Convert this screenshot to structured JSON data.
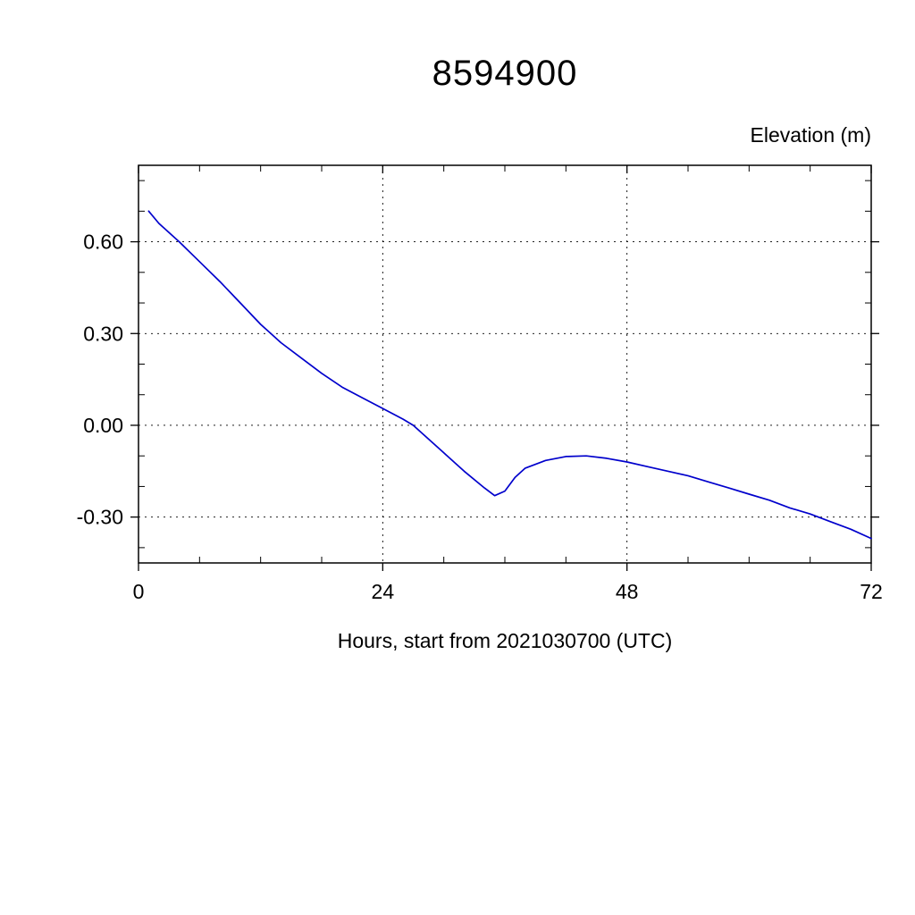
{
  "page": {
    "title": "8594900",
    "y_axis_title": "Elevation (m)",
    "x_axis_title": "Hours, start from 2021030700 (UTC)"
  },
  "chart_data": {
    "type": "line",
    "title": "8594900",
    "xlabel": "Hours, start from 2021030700 (UTC)",
    "ylabel": "Elevation (m)",
    "xlim": [
      0,
      72
    ],
    "ylim": [
      -0.45,
      0.85
    ],
    "grid": "dashed",
    "legend": "none",
    "line_color": "#0000cc",
    "x_major": [
      {
        "value": 0,
        "label": "0"
      },
      {
        "value": 24,
        "label": "24"
      },
      {
        "value": 48,
        "label": "48"
      },
      {
        "value": 72,
        "label": "72"
      }
    ],
    "x_minor_step": 6,
    "y_major": [
      {
        "value": 0.6,
        "label": "0.60"
      },
      {
        "value": 0.3,
        "label": "0.30"
      },
      {
        "value": 0.0,
        "label": "0.00"
      },
      {
        "value": -0.3,
        "label": "-0.30"
      }
    ],
    "y_minor_step": 0.1,
    "series": [
      {
        "name": "elevation",
        "x": [
          1,
          2,
          4,
          6,
          8,
          10,
          12,
          13,
          14,
          16,
          18,
          20,
          22,
          24,
          26,
          27,
          28,
          30,
          32,
          34,
          35,
          36,
          37,
          38,
          40,
          42,
          44,
          46,
          48,
          50,
          52,
          54,
          56,
          58,
          60,
          62,
          64,
          66,
          68,
          70,
          72
        ],
        "y": [
          0.7,
          0.66,
          0.6,
          0.535,
          0.47,
          0.4,
          0.33,
          0.3,
          0.27,
          0.22,
          0.17,
          0.125,
          0.09,
          0.055,
          0.02,
          0.0,
          -0.03,
          -0.09,
          -0.15,
          -0.205,
          -0.23,
          -0.215,
          -0.17,
          -0.14,
          -0.115,
          -0.102,
          -0.1,
          -0.108,
          -0.12,
          -0.135,
          -0.15,
          -0.165,
          -0.185,
          -0.205,
          -0.225,
          -0.245,
          -0.27,
          -0.29,
          -0.315,
          -0.34,
          -0.37
        ]
      }
    ]
  }
}
